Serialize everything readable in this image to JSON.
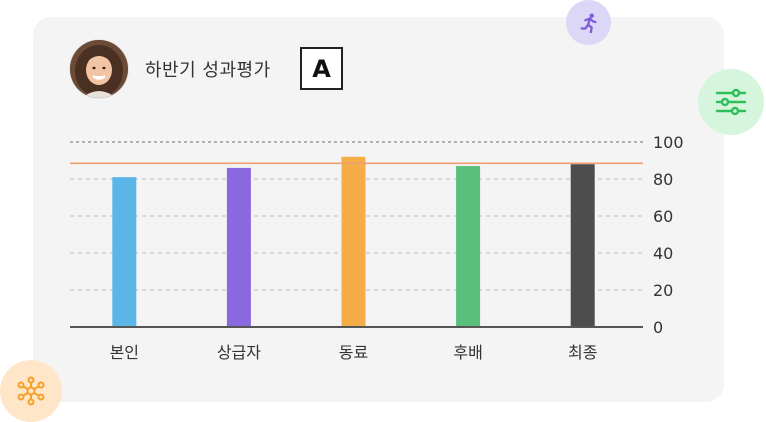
{
  "header": {
    "title": "하반기 성과평가",
    "grade": "A"
  },
  "icons": {
    "run": "running-icon",
    "filter": "sliders-icon",
    "network": "network-icon"
  },
  "colors": {
    "card_bg": "#f4f4f4",
    "reference_line": "#f0a070",
    "axis": "#555555"
  },
  "chart_data": {
    "type": "bar",
    "categories": [
      "본인",
      "상급자",
      "동료",
      "후배",
      "최종"
    ],
    "values": [
      81,
      86,
      92,
      87,
      88
    ],
    "bar_colors": [
      "#5bb5e6",
      "#8a68dd",
      "#f5ad48",
      "#5abf7a",
      "#4d4d4d"
    ],
    "reference_value": 88.5,
    "ylim": [
      0,
      100
    ],
    "yticks": [
      0,
      20,
      40,
      60,
      80,
      100
    ],
    "y_axis_side": "right",
    "grid": true,
    "title": "",
    "xlabel": "",
    "ylabel": ""
  }
}
